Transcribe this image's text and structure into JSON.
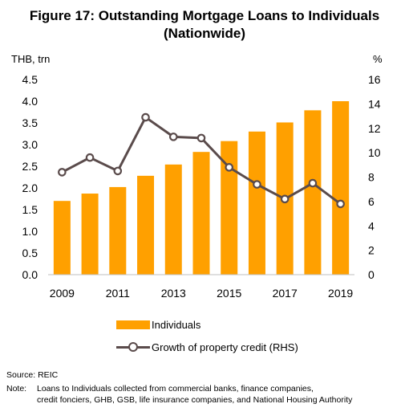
{
  "title_line1": "Figure 17:  Outstanding Mortgage Loans to Individuals",
  "title_line2": "(Nationwide)",
  "left_unit": "THB, trn",
  "right_unit": "%",
  "legend": {
    "bars": "Individuals",
    "line": "Growth of property credit (RHS)"
  },
  "source": "Source: REIC",
  "note_label": "Note:",
  "note_line1": "Loans to Individuals collected from commercial banks, finance companies,",
  "note_line2": "credit fonciers, GHB, GSB, life insurance companies, and National Housing Authority",
  "colors": {
    "bar": "#FFA000",
    "line": "#5A4B4B",
    "marker_fill": "#FFFFFF",
    "text": "#000000"
  },
  "chart_data": {
    "type": "bar+line",
    "x": [
      2009,
      2010,
      2011,
      2012,
      2013,
      2014,
      2015,
      2016,
      2017,
      2018,
      2019
    ],
    "x_tick_labels": [
      "2009",
      "2011",
      "2013",
      "2015",
      "2017",
      "2019"
    ],
    "series": [
      {
        "name": "Individuals",
        "type": "bar",
        "axis": "left",
        "values": [
          1.7,
          1.87,
          2.02,
          2.28,
          2.54,
          2.83,
          3.08,
          3.3,
          3.51,
          3.79,
          4.0
        ]
      },
      {
        "name": "Growth of property credit (RHS)",
        "type": "line",
        "axis": "right",
        "values": [
          8.4,
          9.6,
          8.5,
          12.9,
          11.3,
          11.2,
          8.8,
          7.4,
          6.2,
          7.5,
          5.8
        ]
      }
    ],
    "y_left": {
      "label": "THB, trn",
      "ylim": [
        0,
        4.5
      ],
      "ticks": [
        "0.0",
        "0.5",
        "1.0",
        "1.5",
        "2.0",
        "2.5",
        "3.0",
        "3.5",
        "4.0",
        "4.5"
      ]
    },
    "y_right": {
      "label": "%",
      "ylim": [
        0,
        16
      ],
      "ticks": [
        "0",
        "2",
        "4",
        "6",
        "8",
        "10",
        "12",
        "14",
        "16"
      ]
    },
    "grid": false,
    "legend_position": "bottom"
  }
}
